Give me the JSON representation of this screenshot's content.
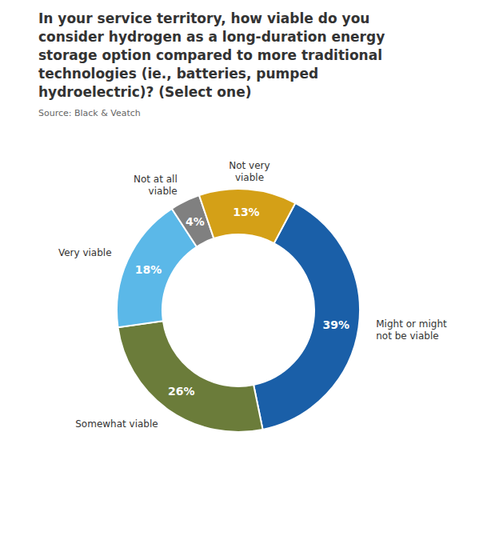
{
  "chart_data": {
    "type": "pie",
    "title": "In your service territory, how viable do you\nconsider hydrogen as a long-duration energy\nstorage option compared to more traditional\ntechnologies (ie., batteries, pumped\nhydroelectric)? (Select one)",
    "source": "Source: Black & Veatch",
    "categories": [
      "Might or might\nnot be viable",
      "Somewhat viable",
      "Very viable",
      "Not at all\nviable",
      "Not very\nviable"
    ],
    "values": [
      39,
      26,
      18,
      4,
      13
    ],
    "value_labels": [
      "39%",
      "26%",
      "18%",
      "4%",
      "13%"
    ],
    "colors": [
      "#1a5fa8",
      "#6b7c3a",
      "#5bb8e8",
      "#808080",
      "#d4a017"
    ],
    "data_labels": true
  }
}
